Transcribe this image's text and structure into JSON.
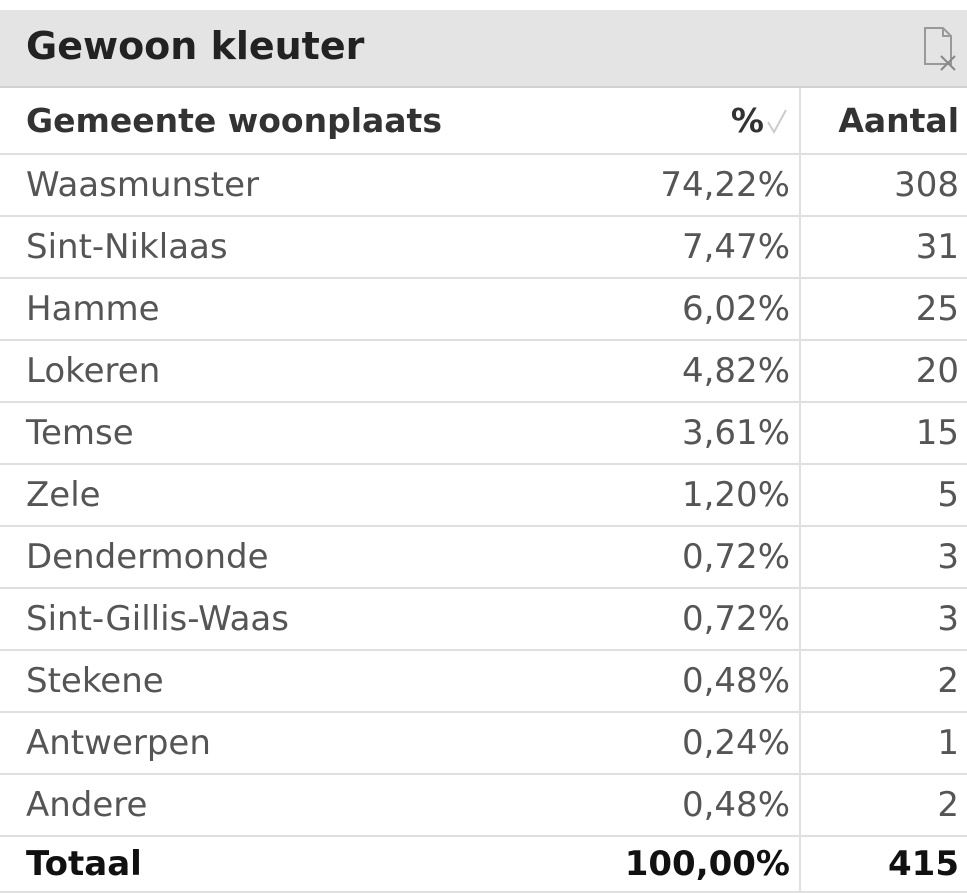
{
  "header": {
    "title": "Gewoon kleuter"
  },
  "table": {
    "columns": [
      "Gemeente woonplaats",
      "%",
      "Aantal"
    ],
    "rows": [
      [
        "Waasmunster",
        "74,22%",
        "308"
      ],
      [
        "Sint-Niklaas",
        "7,47%",
        "31"
      ],
      [
        "Hamme",
        "6,02%",
        "25"
      ],
      [
        "Lokeren",
        "4,82%",
        "20"
      ],
      [
        "Temse",
        "3,61%",
        "15"
      ],
      [
        "Zele",
        "1,20%",
        "5"
      ],
      [
        "Dendermonde",
        "0,72%",
        "3"
      ],
      [
        "Sint-Gillis-Waas",
        "0,72%",
        "3"
      ],
      [
        "Stekene",
        "0,48%",
        "2"
      ],
      [
        "Antwerpen",
        "0,24%",
        "1"
      ],
      [
        "Andere",
        "0,48%",
        "2"
      ]
    ],
    "total": [
      "Totaal",
      "100,00%",
      "415"
    ]
  }
}
